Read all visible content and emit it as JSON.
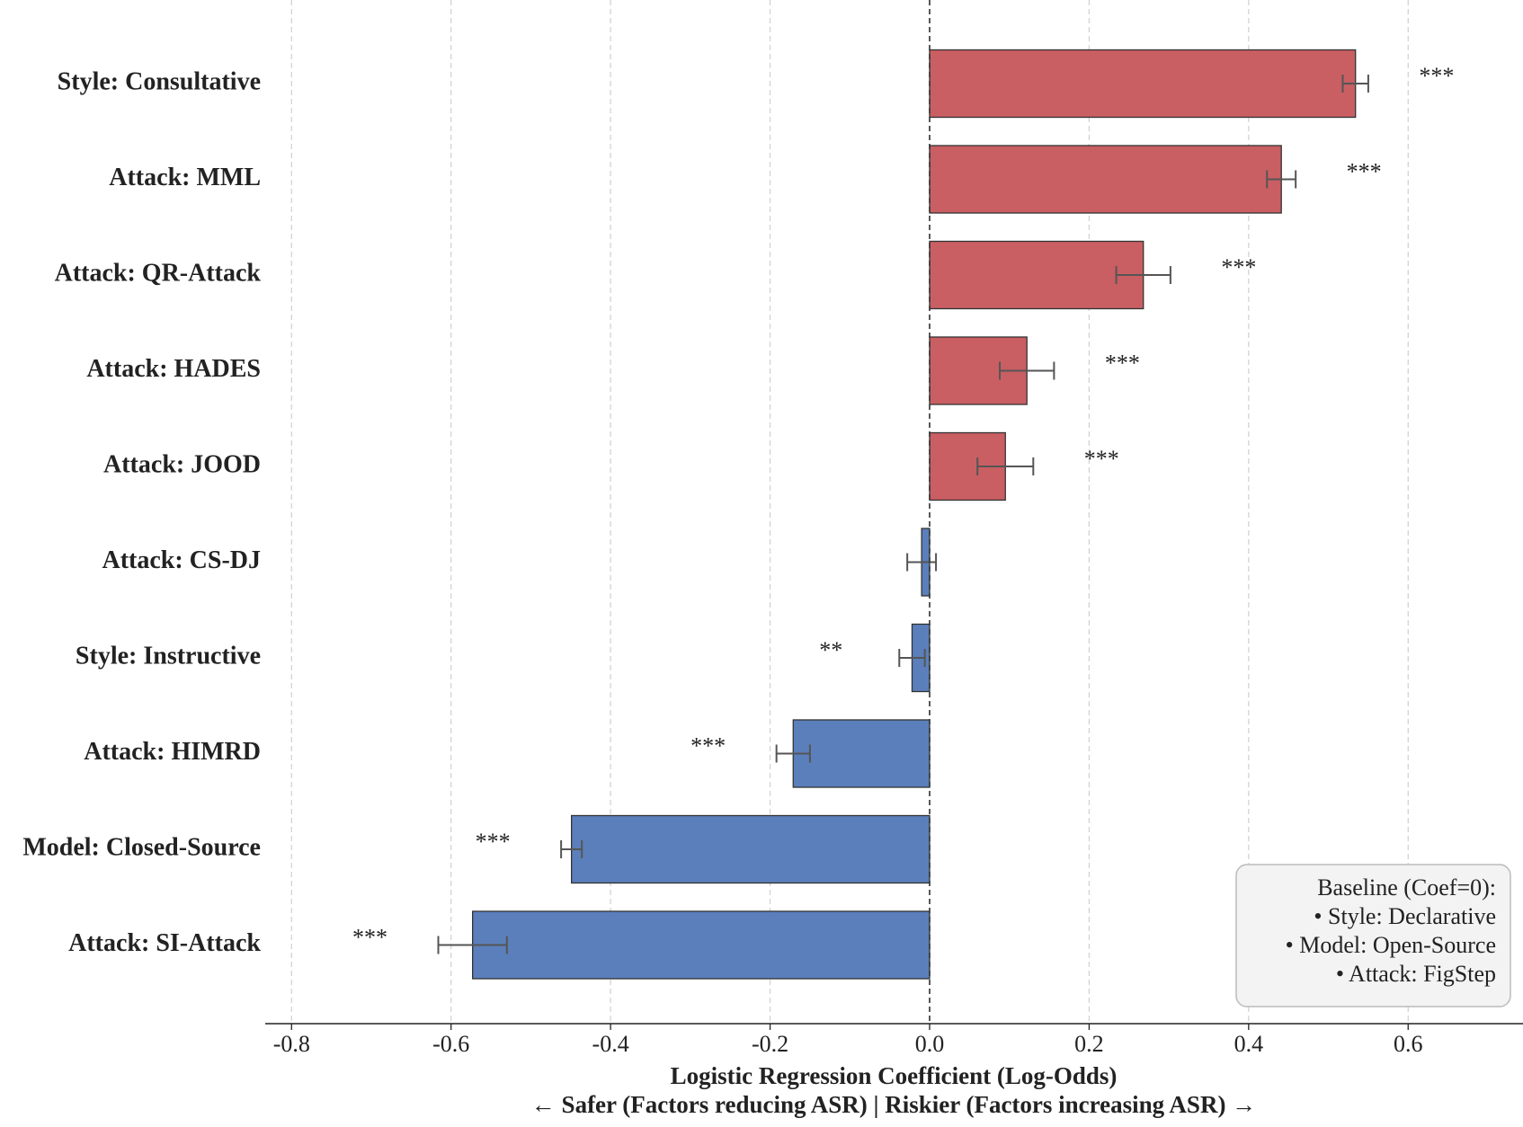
{
  "chart_data": {
    "type": "barh",
    "categories": [
      "Style: Consultative",
      "Attack: MML",
      "Attack: QR-Attack",
      "Attack: HADES",
      "Attack: JOOD",
      "Attack: CS-DJ",
      "Style: Instructive",
      "Attack: HIMRD",
      "Model: Closed-Source",
      "Attack: SI-Attack"
    ],
    "values": [
      0.534,
      0.441,
      0.268,
      0.122,
      0.095,
      -0.01,
      -0.022,
      -0.171,
      -0.449,
      -0.573
    ],
    "errors": [
      0.016,
      0.018,
      0.034,
      0.034,
      0.035,
      0.018,
      0.016,
      0.021,
      0.013,
      0.043
    ],
    "significance": [
      "***",
      "***",
      "***",
      "***",
      "***",
      null,
      "**",
      "***",
      "***",
      "***"
    ],
    "positive_color": "#c95f63",
    "negative_color": "#5b7fbb",
    "xlim": [
      -0.833,
      0.744
    ],
    "xticks": [
      -0.8,
      -0.6,
      -0.4,
      -0.2,
      {
        "value": 0,
        "label": "0.0"
      },
      0.2,
      0.4,
      0.6
    ],
    "grid": true,
    "xlabel": [
      "Logistic Regression Coefficient (Log-Odds)",
      "← Safer (Factors reducing ASR) | Riskier (Factors increasing ASR) →"
    ],
    "baseline_note": [
      "Baseline (Coef=0):",
      "• Style: Declarative",
      "• Model: Open-Source",
      "• Attack: FigStep"
    ],
    "legend_position": "lower right"
  }
}
